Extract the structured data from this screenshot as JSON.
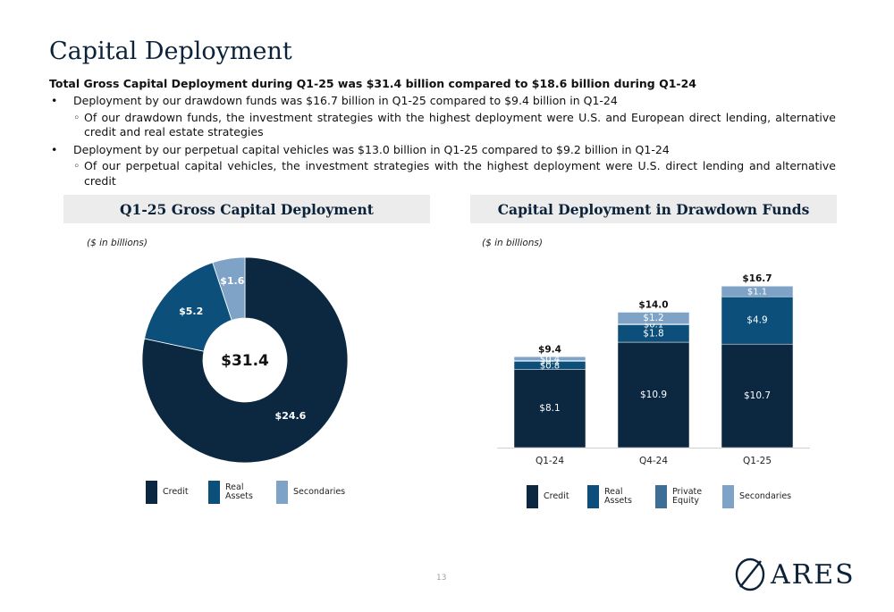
{
  "page": {
    "title": "Capital Deployment",
    "summary": "Total Gross Capital Deployment during Q1-25 was $31.4 billion compared to $18.6 billion during Q1-24",
    "bullets": [
      {
        "text": "Deployment by our drawdown funds was $16.7 billion in Q1-25 compared to $9.4 billion in Q1-24",
        "sub": "Of our drawdown funds, the investment strategies with the highest deployment were U.S. and European direct lending, alternative credit and real estate strategies"
      },
      {
        "text": "Deployment by our perpetual capital vehicles was $13.0 billion in Q1-25 compared to $9.2 billion in Q1-24",
        "sub": "Of our perpetual capital vehicles, the investment strategies with the highest deployment were U.S. direct lending and alternative credit"
      }
    ],
    "page_number": "13",
    "logo_text": "ARES"
  },
  "colors": {
    "credit": "#0b2840",
    "real_assets": "#0c4f7b",
    "private_equity": "#3d6e95",
    "secondaries": "#7ea3c6",
    "header_bg": "#ececec"
  },
  "chart_data": [
    {
      "type": "pie",
      "title": "Q1-25 Gross Capital Deployment",
      "units_note": "($ in billions)",
      "center_label": "$31.4",
      "slices": [
        {
          "name": "Credit",
          "value": 24.6,
          "label": "$24.6",
          "color_key": "credit"
        },
        {
          "name": "Real Assets",
          "value": 5.2,
          "label": "$5.2",
          "color_key": "real_assets"
        },
        {
          "name": "Secondaries",
          "value": 1.6,
          "label": "$1.6",
          "color_key": "secondaries"
        }
      ],
      "legend": [
        {
          "label": "Credit",
          "color_key": "credit"
        },
        {
          "label": "Real\nAssets",
          "color_key": "real_assets"
        },
        {
          "label": "Secondaries",
          "color_key": "secondaries"
        }
      ]
    },
    {
      "type": "bar",
      "stacked": true,
      "title": "Capital Deployment in Drawdown Funds",
      "units_note": "($ in billions)",
      "categories": [
        "Q1-24",
        "Q4-24",
        "Q1-25"
      ],
      "totals": [
        "$9.4",
        "$14.0",
        "$16.7"
      ],
      "total_values": [
        9.4,
        14.0,
        16.7
      ],
      "series": [
        {
          "name": "Credit",
          "color_key": "credit",
          "values": [
            8.1,
            10.9,
            10.7
          ],
          "labels": [
            "$8.1",
            "$10.9",
            "$10.7"
          ]
        },
        {
          "name": "Real Assets",
          "color_key": "real_assets",
          "values": [
            0.8,
            1.8,
            4.9
          ],
          "labels": [
            "$0.8",
            "$1.8",
            "$4.9"
          ]
        },
        {
          "name": "Private Equity",
          "color_key": "private_equity",
          "values": [
            0.1,
            0.1,
            0
          ],
          "labels": [
            "$0.1",
            "$0.1",
            ""
          ]
        },
        {
          "name": "Secondaries",
          "color_key": "secondaries",
          "values": [
            0.4,
            1.2,
            1.1
          ],
          "labels": [
            "$0.4",
            "$1.2",
            "$1.1"
          ]
        }
      ],
      "ylim": [
        0,
        17
      ],
      "legend": [
        {
          "label": "Credit",
          "color_key": "credit"
        },
        {
          "label": "Real\nAssets",
          "color_key": "real_assets"
        },
        {
          "label": "Private\nEquity",
          "color_key": "private_equity"
        },
        {
          "label": "Secondaries",
          "color_key": "secondaries"
        }
      ]
    }
  ]
}
